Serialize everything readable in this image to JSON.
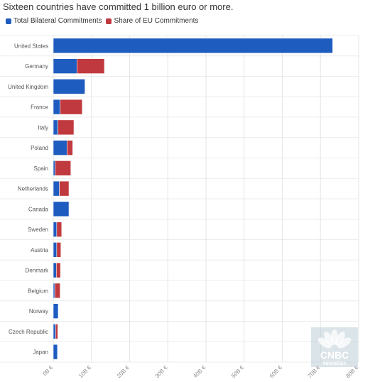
{
  "header": {
    "title": "Sixteen countries have committed 1 billion euro or more."
  },
  "legend": {
    "items": [
      {
        "label": "Total Bilateral Commitments",
        "color": "#1f5cbf"
      },
      {
        "label": "Share of EU Commitments",
        "color": "#c0393f"
      }
    ]
  },
  "watermark": {
    "brand": "CNBC",
    "sub": "INDONESIA"
  },
  "chart_data": {
    "type": "bar",
    "orientation": "horizontal",
    "stacked": true,
    "title": "Sixteen countries have committed 1 billion euro or more.",
    "xlabel": "",
    "ylabel": "",
    "xlim": [
      0,
      80
    ],
    "unit": "billion €",
    "grid": true,
    "legend_position": "top-left",
    "x_ticks": [
      "0B €",
      "10B €",
      "20B €",
      "30B €",
      "40B €",
      "50B €",
      "60B €",
      "70B €",
      "80B €"
    ],
    "categories": [
      "United States",
      "Germany",
      "United Kingdom",
      "France",
      "Italy",
      "Poland",
      "Spain",
      "Netherlands",
      "Canada",
      "Sweden",
      "Austria",
      "Denmark",
      "Belgium",
      "Norway",
      "Czech Republic",
      "Japan"
    ],
    "series": [
      {
        "name": "Total Bilateral Commitments",
        "color": "#1f5cbf",
        "values": [
          73.2,
          6.2,
          8.3,
          1.8,
          1.2,
          3.6,
          0.5,
          1.6,
          4.1,
          0.9,
          0.9,
          0.8,
          0.4,
          1.3,
          0.6,
          1.1
        ]
      },
      {
        "name": "Share of EU Commitments",
        "color": "#c0393f",
        "values": [
          0,
          7.2,
          0,
          5.8,
          4.2,
          1.5,
          4.1,
          2.5,
          0,
          1.3,
          1.1,
          1.1,
          1.4,
          0,
          0.6,
          0
        ]
      }
    ]
  }
}
